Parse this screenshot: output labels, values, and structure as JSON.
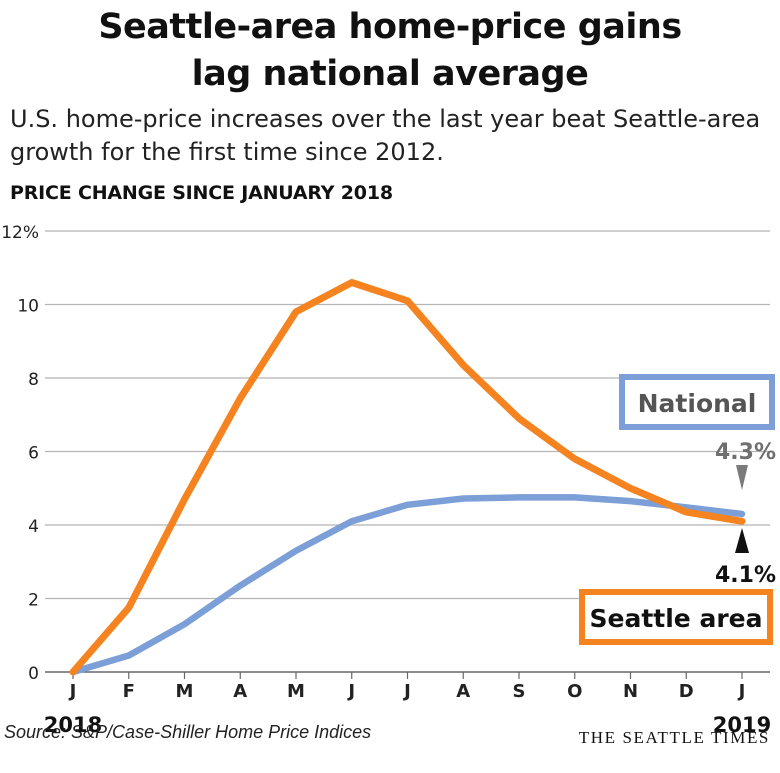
{
  "title_line1": "Seattle-area home-price gains",
  "title_line2": "lag national average",
  "subtitle": "U.S. home-price increases over the last year beat Seattle-area growth for the first time since 2012.",
  "chart_label": "PRICE CHANGE SINCE JANUARY 2018",
  "source": "Source: S&P/Case-Shiller Home Price Indices",
  "credit": "THE SEATTLE TIMES",
  "colors": {
    "national": "#7b9fd6",
    "seattle": "#f5831f",
    "grid": "#b5b5b5",
    "arrow_national": "#7a7a7a",
    "arrow_seattle": "#111111"
  },
  "chart_data": {
    "type": "line",
    "categories": [
      "J",
      "F",
      "M",
      "A",
      "M",
      "J",
      "J",
      "A",
      "S",
      "O",
      "N",
      "D",
      "J"
    ],
    "year_labels": {
      "start": "2018",
      "end": "2019"
    },
    "yticks": [
      "0",
      "2",
      "4",
      "6",
      "8",
      "10",
      "12%"
    ],
    "ylim": [
      0,
      12
    ],
    "grid": true,
    "series": [
      {
        "name": "National",
        "key": "national",
        "values": [
          0,
          0.45,
          1.3,
          2.35,
          3.3,
          4.1,
          4.55,
          4.72,
          4.75,
          4.75,
          4.65,
          4.48,
          4.3
        ]
      },
      {
        "name": "Seattle area",
        "key": "seattle",
        "values": [
          0,
          1.75,
          4.7,
          7.45,
          9.8,
          10.6,
          10.1,
          8.35,
          6.9,
          5.8,
          5.0,
          4.35,
          4.1
        ]
      }
    ],
    "end_labels": {
      "national": "4.3%",
      "seattle": "4.1%"
    }
  }
}
